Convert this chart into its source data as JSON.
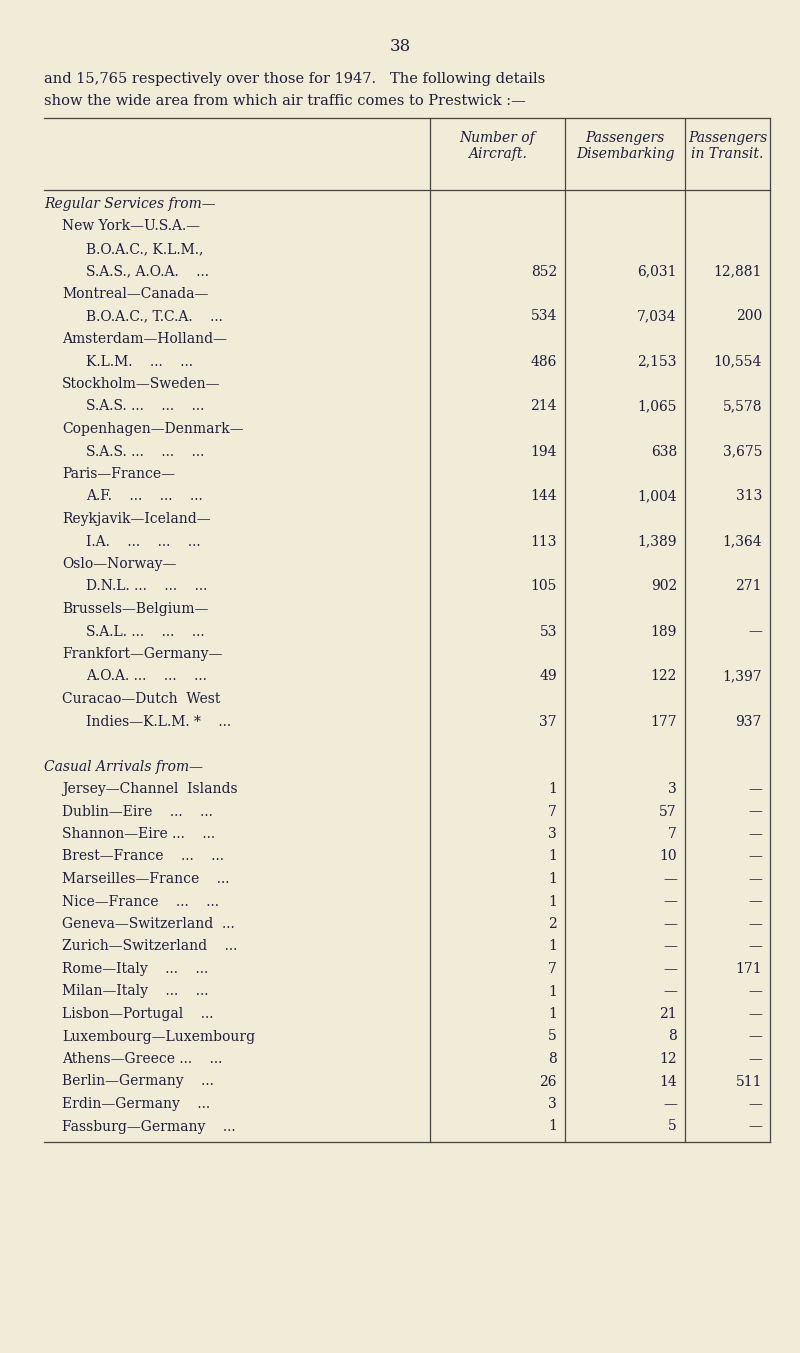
{
  "page_number": "38",
  "intro_line1": "and 15,765 respectively over those for 1947.   The following details",
  "intro_line2": "show the wide area from which air traffic comes to Prestwick :—",
  "bg_color": "#f0ecd8",
  "col_headers_line1": [
    "Number of",
    "Passengers",
    "Passengers"
  ],
  "col_headers_line2": [
    "Aircraft.",
    "Disembarking",
    "in Transit."
  ],
  "rows": [
    {
      "label": "Regular Services from—",
      "indent": 0,
      "italic": true,
      "num": "",
      "dis": "",
      "tra": ""
    },
    {
      "label": "New York—U.S.A.—",
      "indent": 1,
      "italic": false,
      "num": "",
      "dis": "",
      "tra": ""
    },
    {
      "label": "B.O.A.C., K.L.M.,",
      "indent": 2,
      "italic": false,
      "num": "",
      "dis": "",
      "tra": ""
    },
    {
      "label": "S.A.S., A.O.A.    ...",
      "indent": 2,
      "italic": false,
      "num": "852",
      "dis": "6,031",
      "tra": "12,881"
    },
    {
      "label": "Montreal—Canada—",
      "indent": 1,
      "italic": false,
      "num": "",
      "dis": "",
      "tra": ""
    },
    {
      "label": "B.O.A.C., T.C.A.    ...",
      "indent": 2,
      "italic": false,
      "num": "534",
      "dis": "7,034",
      "tra": "200"
    },
    {
      "label": "Amsterdam—Holland—",
      "indent": 1,
      "italic": false,
      "num": "",
      "dis": "",
      "tra": ""
    },
    {
      "label": "K.L.M.    ...    ...",
      "indent": 2,
      "italic": false,
      "num": "486",
      "dis": "2,153",
      "tra": "10,554"
    },
    {
      "label": "Stockholm—Sweden—",
      "indent": 1,
      "italic": false,
      "num": "",
      "dis": "",
      "tra": ""
    },
    {
      "label": "S.A.S. ...    ...    ...",
      "indent": 2,
      "italic": false,
      "num": "214",
      "dis": "1,065",
      "tra": "5,578"
    },
    {
      "label": "Copenhagen—Denmark—",
      "indent": 1,
      "italic": false,
      "num": "",
      "dis": "",
      "tra": ""
    },
    {
      "label": "S.A.S. ...    ...    ...",
      "indent": 2,
      "italic": false,
      "num": "194",
      "dis": "638",
      "tra": "3,675"
    },
    {
      "label": "Paris—France—",
      "indent": 1,
      "italic": false,
      "num": "",
      "dis": "",
      "tra": ""
    },
    {
      "label": "A.F.    ...    ...    ...",
      "indent": 2,
      "italic": false,
      "num": "144",
      "dis": "1,004",
      "tra": "313"
    },
    {
      "label": "Reykjavik—Iceland—",
      "indent": 1,
      "italic": false,
      "num": "",
      "dis": "",
      "tra": ""
    },
    {
      "label": "I.A.    ...    ...    ...",
      "indent": 2,
      "italic": false,
      "num": "113",
      "dis": "1,389",
      "tra": "1,364"
    },
    {
      "label": "Oslo—Norway—",
      "indent": 1,
      "italic": false,
      "num": "",
      "dis": "",
      "tra": ""
    },
    {
      "label": "D.N.L. ...    ...    ...",
      "indent": 2,
      "italic": false,
      "num": "105",
      "dis": "902",
      "tra": "271"
    },
    {
      "label": "Brussels—Belgium—",
      "indent": 1,
      "italic": false,
      "num": "",
      "dis": "",
      "tra": ""
    },
    {
      "label": "S.A.L. ...    ...    ...",
      "indent": 2,
      "italic": false,
      "num": "53",
      "dis": "189",
      "tra": "—"
    },
    {
      "label": "Frankfort—Germany—",
      "indent": 1,
      "italic": false,
      "num": "",
      "dis": "",
      "tra": ""
    },
    {
      "label": "A.O.A. ...    ...    ...",
      "indent": 2,
      "italic": false,
      "num": "49",
      "dis": "122",
      "tra": "1,397"
    },
    {
      "label": "Curacao—Dutch  West",
      "indent": 1,
      "italic": false,
      "num": "",
      "dis": "",
      "tra": ""
    },
    {
      "label": "Indies—K.L.M. *    ...",
      "indent": 2,
      "italic": false,
      "num": "37",
      "dis": "177",
      "tra": "937"
    },
    {
      "label": "",
      "indent": 0,
      "italic": false,
      "num": "",
      "dis": "",
      "tra": ""
    },
    {
      "label": "Casual Arrivals from—",
      "indent": 0,
      "italic": true,
      "num": "",
      "dis": "",
      "tra": ""
    },
    {
      "label": "Jersey—Channel  Islands",
      "indent": 1,
      "italic": false,
      "num": "1",
      "dis": "3",
      "tra": "—"
    },
    {
      "label": "Dublin—Eire    ...    ...",
      "indent": 1,
      "italic": false,
      "num": "7",
      "dis": "57",
      "tra": "—"
    },
    {
      "label": "Shannon—Eire ...    ...",
      "indent": 1,
      "italic": false,
      "num": "3",
      "dis": "7",
      "tra": "—"
    },
    {
      "label": "Brest—France    ...    ...",
      "indent": 1,
      "italic": false,
      "num": "1",
      "dis": "10",
      "tra": "—"
    },
    {
      "label": "Marseilles—France    ...",
      "indent": 1,
      "italic": false,
      "num": "1",
      "dis": "—",
      "tra": "—"
    },
    {
      "label": "Nice—France    ...    ...",
      "indent": 1,
      "italic": false,
      "num": "1",
      "dis": "—",
      "tra": "—"
    },
    {
      "label": "Geneva—Switzerland  ...",
      "indent": 1,
      "italic": false,
      "num": "2",
      "dis": "—",
      "tra": "—"
    },
    {
      "label": "Zurich—Switzerland    ...",
      "indent": 1,
      "italic": false,
      "num": "1",
      "dis": "—",
      "tra": "—"
    },
    {
      "label": "Rome—Italy    ...    ...",
      "indent": 1,
      "italic": false,
      "num": "7",
      "dis": "—",
      "tra": "171"
    },
    {
      "label": "Milan—Italy    ...    ...",
      "indent": 1,
      "italic": false,
      "num": "1",
      "dis": "—",
      "tra": "—"
    },
    {
      "label": "Lisbon—Portugal    ...",
      "indent": 1,
      "italic": false,
      "num": "1",
      "dis": "21",
      "tra": "—"
    },
    {
      "label": "Luxembourg—Luxembourg",
      "indent": 1,
      "italic": false,
      "num": "5",
      "dis": "8",
      "tra": "—"
    },
    {
      "label": "Athens—Greece ...    ...",
      "indent": 1,
      "italic": false,
      "num": "8",
      "dis": "12",
      "tra": "—"
    },
    {
      "label": "Berlin—Germany    ...",
      "indent": 1,
      "italic": false,
      "num": "26",
      "dis": "14",
      "tra": "511"
    },
    {
      "label": "Erdin—Germany    ...",
      "indent": 1,
      "italic": false,
      "num": "3",
      "dis": "—",
      "tra": "—"
    },
    {
      "label": "Fassburg—Germany    ...",
      "indent": 1,
      "italic": false,
      "num": "1",
      "dis": "5",
      "tra": "—"
    }
  ],
  "text_color": "#1e1e3c",
  "line_color": "#444444",
  "font_size": 10.0,
  "header_font_size": 10.0,
  "page_num_size": 12,
  "intro_font_size": 10.5
}
